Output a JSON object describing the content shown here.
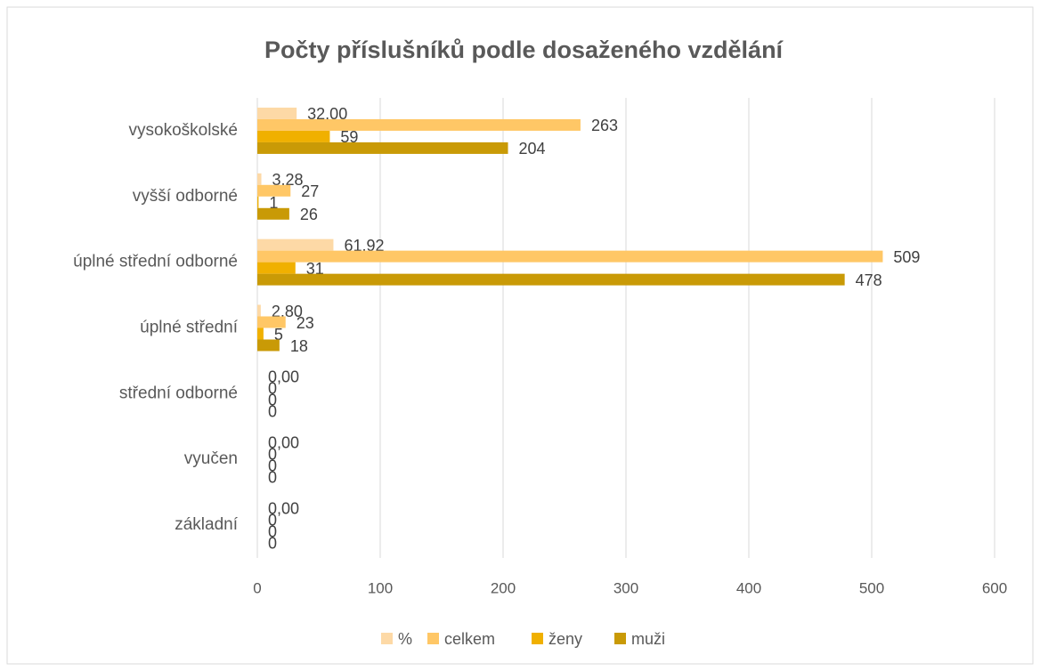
{
  "chart_data": {
    "type": "bar",
    "orientation": "horizontal",
    "title": "Počty příslušníků podle dosaženého vzdělání",
    "categories": [
      "vysokoškolské",
      "vyšší odborné",
      "úplné střední odborné",
      "úplné střední",
      "střední odborné",
      "vyučen",
      "základní"
    ],
    "series": [
      {
        "name": "%",
        "color": "#fdd9a6",
        "values": [
          32,
          3.28,
          61.92,
          2.8,
          0,
          0,
          0
        ],
        "value_labels": [
          "32,00",
          "3,28",
          "61,92",
          "2,80",
          "0,00",
          "0,00",
          "0,00"
        ]
      },
      {
        "name": "celkem",
        "color": "#ffc766",
        "values": [
          263,
          27,
          509,
          23,
          0,
          0,
          0
        ]
      },
      {
        "name": "ženy",
        "color": "#f0b000",
        "values": [
          59,
          1,
          31,
          5,
          0,
          0,
          0
        ]
      },
      {
        "name": "muži",
        "color": "#c99a06",
        "values": [
          204,
          26,
          478,
          18,
          0,
          0,
          0
        ]
      }
    ],
    "xlim": [
      0,
      600
    ],
    "xticks": [
      0,
      100,
      200,
      300,
      400,
      500,
      600
    ],
    "grid": true,
    "legend": "bottom"
  }
}
